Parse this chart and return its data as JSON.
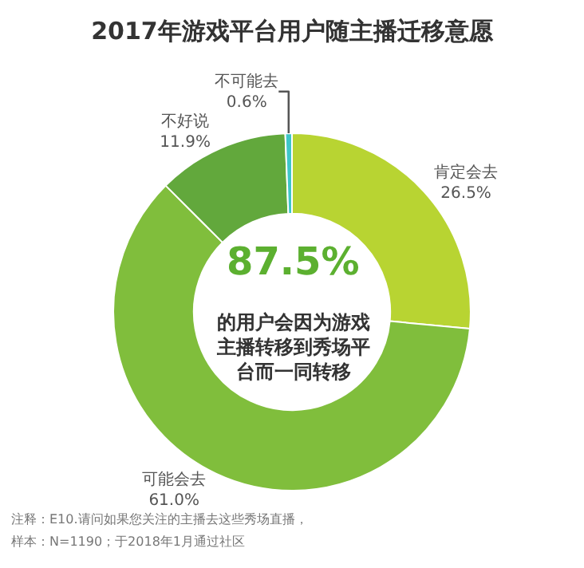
{
  "chart_data": {
    "type": "donut",
    "title": "2017年游戏平台用户随主播迁移意愿",
    "categories": [
      "肯定会去",
      "可能会去",
      "不好说",
      "不可能去"
    ],
    "values": [
      26.5,
      61.0,
      11.9,
      0.6
    ],
    "value_labels": [
      "26.5%",
      "61.0%",
      "11.9%",
      "0.6%"
    ],
    "colors": [
      "#b8d432",
      "#80be3c",
      "#62a83c",
      "#3ec6c8"
    ],
    "annotations": [
      "87.5%",
      "的用户会因为游戏主播转移到秀场平台而一同转移",
      "注释：E10.请问如果您关注的主播去这些秀场直播，",
      "样本：N=1190；于2018年1月通过社区"
    ],
    "legend": false
  }
}
